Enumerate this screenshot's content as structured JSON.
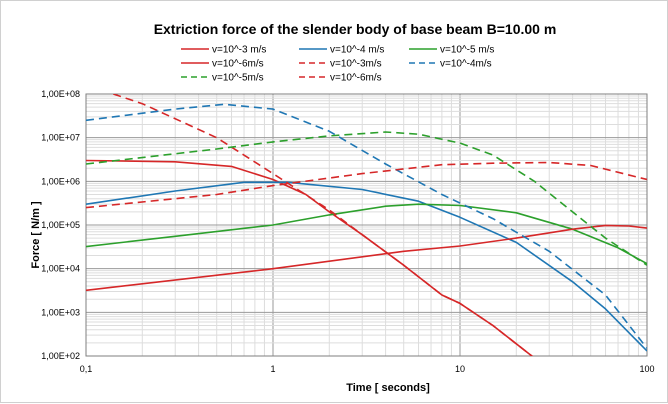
{
  "chart_data": {
    "type": "line",
    "title": "Extriction force of  the slender  body of base beam  B=10.00 m",
    "xlabel": "Time [ seconds]",
    "ylabel": "Force [ N/m ]",
    "xscale": "log",
    "yscale": "log",
    "xlim": [
      0.1,
      100
    ],
    "ylim": [
      100,
      100000000
    ],
    "x_tick_labels": [
      "0,1",
      "1",
      "10",
      "100"
    ],
    "y_tick_labels": [
      "1,00E+02",
      "1,00E+03",
      "1,00E+04",
      "1,00E+05",
      "1,00E+06",
      "1,00E+07",
      "1,00E+08"
    ],
    "grid": true,
    "legend_position": "top",
    "series": [
      {
        "name": "v=10^-3 m/s",
        "color": "#d62728",
        "style": "solid",
        "points": [
          [
            0.1,
            3000000
          ],
          [
            0.3,
            2800000
          ],
          [
            0.6,
            2200000
          ],
          [
            1,
            1100000
          ],
          [
            1.5,
            500000
          ],
          [
            2,
            200000
          ],
          [
            3,
            60000
          ],
          [
            5,
            12000
          ],
          [
            8,
            2500
          ],
          [
            10,
            1600
          ],
          [
            15,
            500
          ],
          [
            25,
            90
          ]
        ]
      },
      {
        "name": "v=10^-4 m/s",
        "color": "#1f77b4",
        "style": "solid",
        "points": [
          [
            0.1,
            300000
          ],
          [
            0.3,
            600000
          ],
          [
            0.7,
            950000
          ],
          [
            1.2,
            950000
          ],
          [
            3,
            650000
          ],
          [
            6,
            350000
          ],
          [
            10,
            150000
          ],
          [
            20,
            40000
          ],
          [
            40,
            5000
          ],
          [
            60,
            1200
          ],
          [
            100,
            130
          ]
        ]
      },
      {
        "name": "v=10^-5 m/s",
        "color": "#2ca02c",
        "style": "solid",
        "points": [
          [
            0.1,
            32000
          ],
          [
            0.3,
            55000
          ],
          [
            1,
            100000
          ],
          [
            2,
            170000
          ],
          [
            4,
            270000
          ],
          [
            6,
            300000
          ],
          [
            10,
            280000
          ],
          [
            20,
            190000
          ],
          [
            40,
            80000
          ],
          [
            70,
            30000
          ],
          [
            100,
            13000
          ]
        ]
      },
      {
        "name": "v=10^-6m/s",
        "color": "#d62728",
        "style": "solid",
        "points": [
          [
            0.1,
            3200
          ],
          [
            1,
            10000
          ],
          [
            5,
            25000
          ],
          [
            10,
            33000
          ],
          [
            20,
            50000
          ],
          [
            40,
            80000
          ],
          [
            60,
            98000
          ],
          [
            80,
            95000
          ],
          [
            100,
            85000
          ]
        ]
      },
      {
        "name": "v=10^-3m/s",
        "color": "#d62728",
        "style": "dashed",
        "points": [
          [
            0.14,
            100000000
          ],
          [
            0.2,
            60000000
          ],
          [
            0.5,
            10000000
          ],
          [
            1,
            1500000
          ],
          [
            2,
            220000
          ],
          [
            3,
            60000
          ],
          [
            5,
            12000
          ],
          [
            8,
            2500
          ],
          [
            10,
            1600
          ],
          [
            15,
            500
          ],
          [
            25,
            90
          ]
        ]
      },
      {
        "name": "v=10^-4m/s",
        "color": "#1f77b4",
        "style": "dashed",
        "points": [
          [
            0.1,
            25000000
          ],
          [
            0.3,
            45000000
          ],
          [
            0.55,
            58000000
          ],
          [
            1,
            45000000
          ],
          [
            2,
            14000000
          ],
          [
            4,
            2500000
          ],
          [
            8,
            500000
          ],
          [
            15,
            140000
          ],
          [
            30,
            25000
          ],
          [
            60,
            2500
          ],
          [
            100,
            150
          ]
        ]
      },
      {
        "name": "v=10^-5m/s",
        "color": "#2ca02c",
        "style": "dashed",
        "points": [
          [
            0.1,
            2500000
          ],
          [
            0.5,
            5500000
          ],
          [
            1,
            8000000
          ],
          [
            2,
            11000000
          ],
          [
            4,
            13500000
          ],
          [
            6,
            12000000
          ],
          [
            10,
            7500000
          ],
          [
            15,
            4000000
          ],
          [
            25,
            1000000
          ],
          [
            40,
            200000
          ],
          [
            60,
            50000
          ],
          [
            100,
            12000
          ]
        ]
      },
      {
        "name": "v=10^-6m/s",
        "color": "#d62728",
        "style": "dashed",
        "points": [
          [
            0.1,
            250000
          ],
          [
            0.5,
            500000
          ],
          [
            1,
            800000
          ],
          [
            3,
            1500000
          ],
          [
            8,
            2400000
          ],
          [
            15,
            2600000
          ],
          [
            30,
            2700000
          ],
          [
            50,
            2300000
          ],
          [
            100,
            1100000
          ]
        ]
      }
    ],
    "legend_layout": [
      [
        0,
        1,
        2
      ],
      [
        3,
        4,
        5
      ],
      [
        6,
        7
      ]
    ]
  }
}
